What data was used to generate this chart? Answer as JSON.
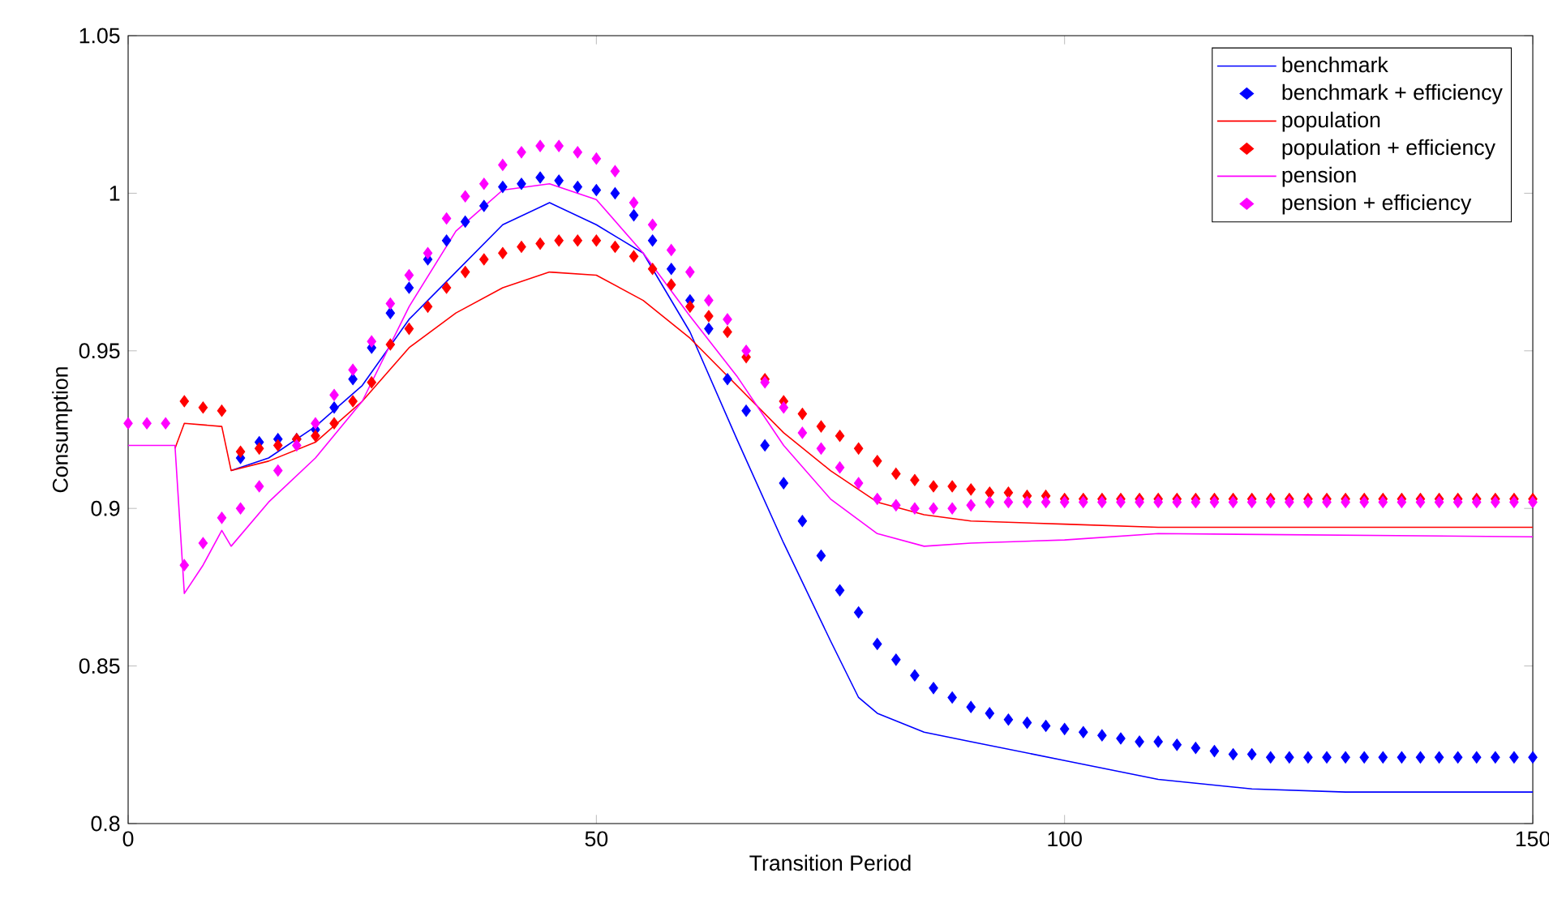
{
  "chart_data": {
    "type": "line",
    "xlabel": "Transition Period",
    "ylabel": "Consumption",
    "xlim": [
      0,
      150
    ],
    "ylim": [
      0.8,
      1.05
    ],
    "xticks": [
      0,
      50,
      100,
      150
    ],
    "yticks": [
      0.8,
      0.85,
      0.9,
      0.95,
      1,
      1.05
    ],
    "legend": "top right",
    "series": [
      {
        "name": "benchmark",
        "line_style": "solid",
        "color": "#0000ff",
        "x": [
          11,
          15,
          20,
          25,
          30,
          35,
          40,
          45,
          50,
          55,
          60,
          65,
          70,
          75,
          78,
          80,
          85,
          90,
          100,
          110,
          120,
          130,
          150
        ],
        "values": [
          0.912,
          0.916,
          0.926,
          0.939,
          0.96,
          0.975,
          0.99,
          0.997,
          0.99,
          0.981,
          0.956,
          0.922,
          0.889,
          0.858,
          0.84,
          0.835,
          0.829,
          0.826,
          0.82,
          0.814,
          0.811,
          0.81,
          0.81
        ]
      },
      {
        "name": "benchmark + efficiency",
        "type": "scatter",
        "marker": "diamond",
        "color": "#0000ff",
        "x": [
          12,
          14,
          16,
          18,
          20,
          22,
          24,
          26,
          28,
          30,
          32,
          34,
          36,
          38,
          40,
          42,
          44,
          46,
          48,
          50,
          52,
          54,
          56,
          58,
          60,
          62,
          64,
          66,
          68,
          70,
          72,
          74,
          76,
          78,
          80,
          82,
          84,
          86,
          88,
          90,
          92,
          94,
          96,
          98,
          100,
          102,
          104,
          106,
          108,
          110,
          112,
          114,
          116,
          118,
          120,
          122,
          124,
          126,
          128,
          130,
          132,
          134,
          136,
          138,
          140,
          142,
          144,
          146,
          148,
          150
        ],
        "values": [
          0.916,
          0.921,
          0.922,
          0.922,
          0.925,
          0.932,
          0.941,
          0.951,
          0.962,
          0.97,
          0.979,
          0.985,
          0.991,
          0.996,
          1.002,
          1.003,
          1.005,
          1.004,
          1.002,
          1.001,
          1.0,
          0.993,
          0.985,
          0.976,
          0.966,
          0.957,
          0.941,
          0.931,
          0.92,
          0.908,
          0.896,
          0.885,
          0.874,
          0.867,
          0.857,
          0.852,
          0.847,
          0.843,
          0.84,
          0.837,
          0.835,
          0.833,
          0.832,
          0.831,
          0.83,
          0.829,
          0.828,
          0.827,
          0.826,
          0.826,
          0.825,
          0.824,
          0.823,
          0.822,
          0.822,
          0.821,
          0.821,
          0.821,
          0.821,
          0.821,
          0.821,
          0.821,
          0.821,
          0.821,
          0.821,
          0.821,
          0.821,
          0.821,
          0.821,
          0.821
        ]
      },
      {
        "name": "population",
        "line_style": "solid",
        "color": "#ff0000",
        "x": [
          5,
          6,
          10,
          11,
          15,
          20,
          25,
          30,
          35,
          40,
          45,
          50,
          55,
          60,
          65,
          70,
          75,
          80,
          85,
          90,
          100,
          110,
          150
        ],
        "values": [
          0.919,
          0.927,
          0.926,
          0.912,
          0.915,
          0.921,
          0.934,
          0.951,
          0.962,
          0.97,
          0.975,
          0.974,
          0.966,
          0.954,
          0.939,
          0.924,
          0.912,
          0.902,
          0.898,
          0.896,
          0.895,
          0.894,
          0.894
        ]
      },
      {
        "name": "population + efficiency",
        "type": "scatter",
        "marker": "diamond",
        "color": "#ff0000",
        "x": [
          6,
          8,
          10,
          12,
          14,
          16,
          18,
          20,
          22,
          24,
          26,
          28,
          30,
          32,
          34,
          36,
          38,
          40,
          42,
          44,
          46,
          48,
          50,
          52,
          54,
          56,
          58,
          60,
          62,
          64,
          66,
          68,
          70,
          72,
          74,
          76,
          78,
          80,
          82,
          84,
          86,
          88,
          90,
          92,
          94,
          96,
          98,
          100,
          102,
          104,
          106,
          108,
          110,
          112,
          114,
          116,
          118,
          120,
          122,
          124,
          126,
          128,
          130,
          132,
          134,
          136,
          138,
          140,
          142,
          144,
          146,
          148,
          150
        ],
        "values": [
          0.934,
          0.932,
          0.931,
          0.918,
          0.919,
          0.92,
          0.922,
          0.923,
          0.927,
          0.934,
          0.94,
          0.952,
          0.957,
          0.964,
          0.97,
          0.975,
          0.979,
          0.981,
          0.983,
          0.984,
          0.985,
          0.985,
          0.985,
          0.983,
          0.98,
          0.976,
          0.971,
          0.964,
          0.961,
          0.956,
          0.948,
          0.941,
          0.934,
          0.93,
          0.926,
          0.923,
          0.919,
          0.915,
          0.911,
          0.909,
          0.907,
          0.907,
          0.906,
          0.905,
          0.905,
          0.904,
          0.904,
          0.903,
          0.903,
          0.903,
          0.903,
          0.903,
          0.903,
          0.903,
          0.903,
          0.903,
          0.903,
          0.903,
          0.903,
          0.903,
          0.903,
          0.903,
          0.903,
          0.903,
          0.903,
          0.903,
          0.903,
          0.903,
          0.903,
          0.903,
          0.903,
          0.903,
          0.903
        ]
      },
      {
        "name": "pension",
        "line_style": "solid",
        "color": "#ff00ff",
        "x": [
          0,
          5,
          6,
          8,
          10,
          11,
          15,
          20,
          25,
          30,
          35,
          40,
          45,
          50,
          55,
          60,
          65,
          70,
          75,
          80,
          85,
          90,
          100,
          110,
          150
        ],
        "values": [
          0.92,
          0.92,
          0.873,
          0.882,
          0.893,
          0.888,
          0.902,
          0.916,
          0.934,
          0.964,
          0.988,
          1.001,
          1.003,
          0.998,
          0.981,
          0.961,
          0.942,
          0.92,
          0.903,
          0.892,
          0.888,
          0.889,
          0.89,
          0.892,
          0.891
        ]
      },
      {
        "name": "pension + efficiency",
        "type": "scatter",
        "marker": "diamond",
        "color": "#ff00ff",
        "x": [
          0,
          2,
          4,
          6,
          8,
          10,
          12,
          14,
          16,
          18,
          20,
          22,
          24,
          26,
          28,
          30,
          32,
          34,
          36,
          38,
          40,
          42,
          44,
          46,
          48,
          50,
          52,
          54,
          56,
          58,
          60,
          62,
          64,
          66,
          68,
          70,
          72,
          74,
          76,
          78,
          80,
          82,
          84,
          86,
          88,
          90,
          92,
          94,
          96,
          98,
          100,
          102,
          104,
          106,
          108,
          110,
          112,
          114,
          116,
          118,
          120,
          122,
          124,
          126,
          128,
          130,
          132,
          134,
          136,
          138,
          140,
          142,
          144,
          146,
          148,
          150
        ],
        "values": [
          0.927,
          0.927,
          0.927,
          0.882,
          0.889,
          0.897,
          0.9,
          0.907,
          0.912,
          0.92,
          0.927,
          0.936,
          0.944,
          0.953,
          0.965,
          0.974,
          0.981,
          0.992,
          0.999,
          1.003,
          1.009,
          1.013,
          1.015,
          1.015,
          1.013,
          1.011,
          1.007,
          0.997,
          0.99,
          0.982,
          0.975,
          0.966,
          0.96,
          0.95,
          0.94,
          0.932,
          0.924,
          0.919,
          0.913,
          0.908,
          0.903,
          0.901,
          0.9,
          0.9,
          0.9,
          0.901,
          0.902,
          0.902,
          0.902,
          0.902,
          0.902,
          0.902,
          0.902,
          0.902,
          0.902,
          0.902,
          0.902,
          0.902,
          0.902,
          0.902,
          0.902,
          0.902,
          0.902,
          0.902,
          0.902,
          0.902,
          0.902,
          0.902,
          0.902,
          0.902,
          0.902,
          0.902,
          0.902,
          0.902,
          0.902,
          0.902
        ]
      }
    ]
  }
}
